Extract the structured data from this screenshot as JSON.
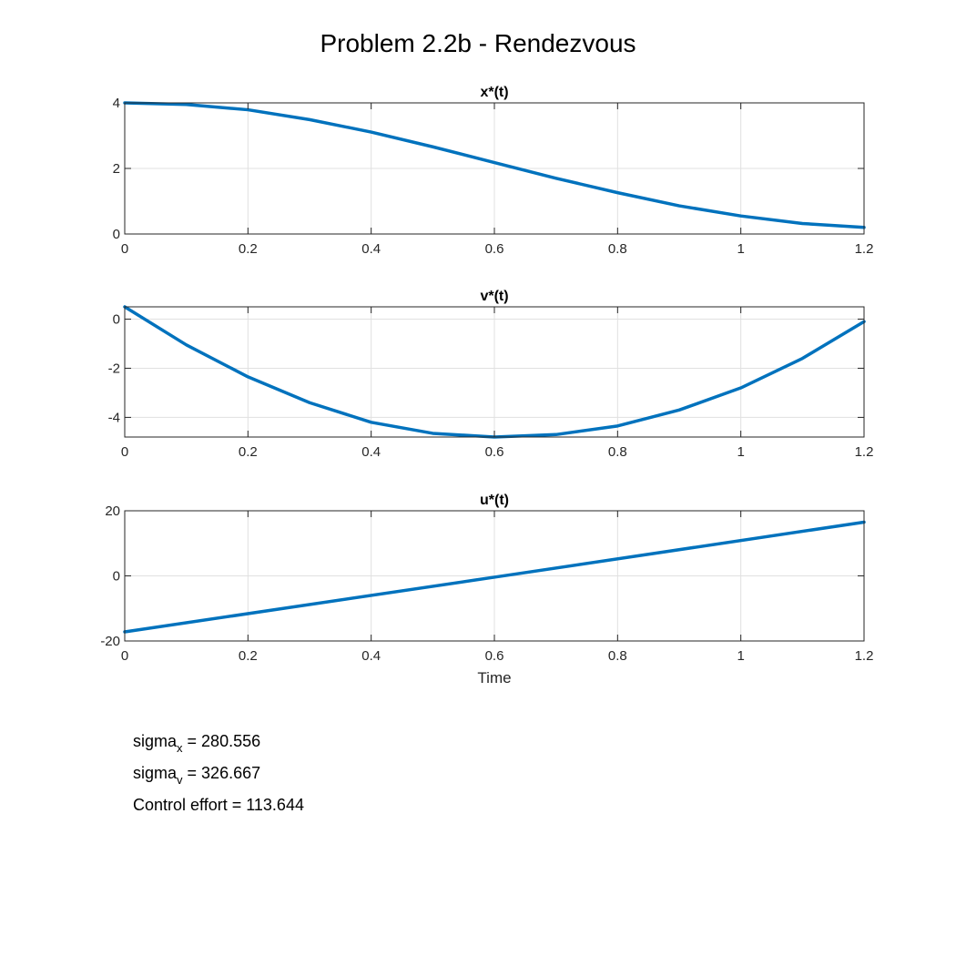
{
  "figure": {
    "title": "Problem 2.2b - Rendezvous"
  },
  "stats": {
    "sigma_x": {
      "name": "sigma",
      "sub": "x",
      "value": "= 280.556"
    },
    "sigma_v": {
      "name": "sigma",
      "sub": "v",
      "value": "= 326.667"
    },
    "control_effort": "Control effort = 113.644"
  },
  "colors": {
    "line": "#0072BD",
    "grid": "#e0e0e0",
    "axis": "#262626"
  },
  "chart_data": [
    {
      "type": "line",
      "title": "x*(t)",
      "xlabel": "",
      "ylabel": "",
      "xlim": [
        0,
        1.2
      ],
      "ylim": [
        0,
        4
      ],
      "xticks": [
        0,
        0.2,
        0.4,
        0.6,
        0.8,
        1,
        1.2
      ],
      "xtick_labels": [
        "0",
        "0.2",
        "0.4",
        "0.6",
        "0.8",
        "1",
        "1.2"
      ],
      "yticks": [
        0,
        2,
        4
      ],
      "ytick_labels": [
        "0",
        "2",
        "4"
      ],
      "grid": true,
      "series": [
        {
          "x": [
            0,
            0.1,
            0.2,
            0.3,
            0.4,
            0.5,
            0.6,
            0.7,
            0.8,
            0.9,
            1.0,
            1.1,
            1.2
          ],
          "y": [
            4.0,
            3.95,
            3.79,
            3.49,
            3.11,
            2.66,
            2.18,
            1.7,
            1.26,
            0.86,
            0.55,
            0.32,
            0.2
          ]
        }
      ]
    },
    {
      "type": "line",
      "title": "v*(t)",
      "xlabel": "",
      "ylabel": "",
      "xlim": [
        0,
        1.2
      ],
      "ylim": [
        -4.8,
        0.5
      ],
      "xticks": [
        0,
        0.2,
        0.4,
        0.6,
        0.8,
        1,
        1.2
      ],
      "xtick_labels": [
        "0",
        "0.2",
        "0.4",
        "0.6",
        "0.8",
        "1",
        "1.2"
      ],
      "yticks": [
        -4,
        -2,
        0
      ],
      "ytick_labels": [
        "-4",
        "-2",
        "0"
      ],
      "grid": true,
      "series": [
        {
          "x": [
            0,
            0.1,
            0.2,
            0.3,
            0.4,
            0.5,
            0.6,
            0.7,
            0.8,
            0.9,
            1.0,
            1.1,
            1.2
          ],
          "y": [
            0.5,
            -1.05,
            -2.35,
            -3.4,
            -4.2,
            -4.65,
            -4.8,
            -4.7,
            -4.35,
            -3.7,
            -2.8,
            -1.6,
            -0.1
          ]
        }
      ]
    },
    {
      "type": "line",
      "title": "u*(t)",
      "xlabel": "Time",
      "ylabel": "",
      "xlim": [
        0,
        1.2
      ],
      "ylim": [
        -20,
        20
      ],
      "xticks": [
        0,
        0.2,
        0.4,
        0.6,
        0.8,
        1,
        1.2
      ],
      "xtick_labels": [
        "0",
        "0.2",
        "0.4",
        "0.6",
        "0.8",
        "1",
        "1.2"
      ],
      "yticks": [
        -20,
        0,
        20
      ],
      "ytick_labels": [
        "-20",
        "0",
        "20"
      ],
      "grid": true,
      "series": [
        {
          "x": [
            0,
            0.6,
            1.2
          ],
          "y": [
            -17.2,
            -0.4,
            16.5
          ]
        }
      ]
    }
  ]
}
